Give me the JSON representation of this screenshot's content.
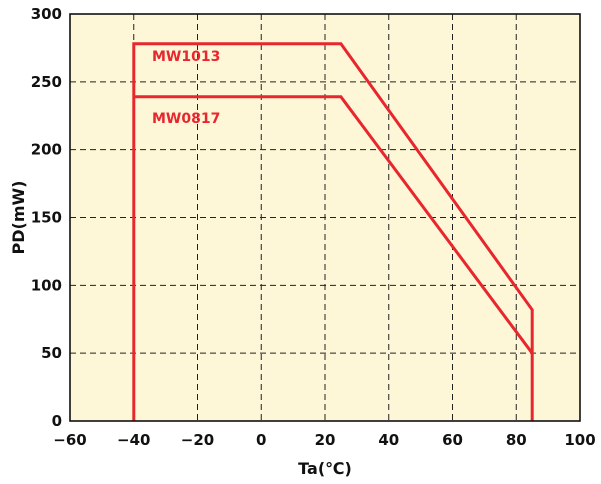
{
  "chart_data": {
    "type": "line",
    "xlabel": "Ta(℃)",
    "ylabel": "PD(mW)",
    "xlim": [
      -60,
      100
    ],
    "ylim": [
      0,
      300
    ],
    "xticks": [
      -60,
      -40,
      -20,
      0,
      20,
      40,
      60,
      80,
      100
    ],
    "yticks": [
      0,
      50,
      100,
      150,
      200,
      250,
      300
    ],
    "xtick_labels": [
      "−60",
      "−40",
      "−20",
      "0",
      "20",
      "40",
      "60",
      "80",
      "100"
    ],
    "ytick_labels": [
      "0",
      "50",
      "100",
      "150",
      "200",
      "250",
      "300"
    ],
    "grid": true,
    "grid_style": "dashed",
    "plot_background": "#fdf6d7",
    "series": [
      {
        "name": "MW1013",
        "color": "#e8262e",
        "x": [
          -40,
          -40,
          25,
          85,
          85
        ],
        "y": [
          0,
          278,
          278,
          82,
          0
        ]
      },
      {
        "name": "MW0817",
        "color": "#e8262e",
        "x": [
          -40,
          25,
          85
        ],
        "y": [
          239,
          239,
          50
        ]
      }
    ]
  }
}
